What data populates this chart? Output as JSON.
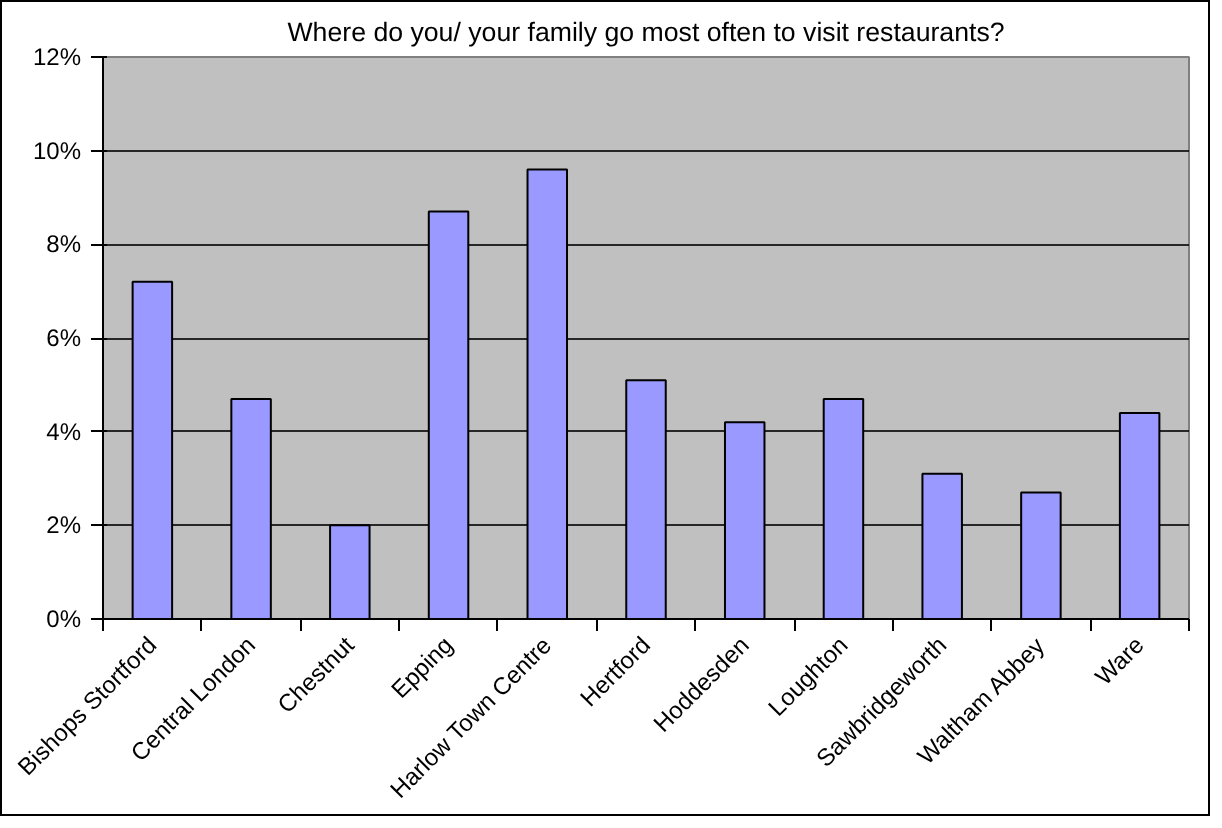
{
  "chart_data": {
    "type": "bar",
    "title": "Where do you/ your family go most often to visit restaurants?",
    "categories": [
      "Bishops Stortford",
      "Central London",
      "Chestnut",
      "Epping",
      "Harlow Town Centre",
      "Hertford",
      "Hoddesden",
      "Loughton",
      "Sawbridgeworth",
      "Waltham Abbey",
      "Ware"
    ],
    "values": [
      7.2,
      4.7,
      2.0,
      8.7,
      9.6,
      5.1,
      4.2,
      4.7,
      3.1,
      2.7,
      4.4
    ],
    "color": "#9999ff",
    "ylim": [
      0,
      12
    ],
    "yticks": [
      {
        "value": 0,
        "label": "0%"
      },
      {
        "value": 2,
        "label": "2%"
      },
      {
        "value": 4,
        "label": "4%"
      },
      {
        "value": 6,
        "label": "6%"
      },
      {
        "value": 8,
        "label": "8%"
      },
      {
        "value": 10,
        "label": "10%"
      },
      {
        "value": 12,
        "label": "12%"
      }
    ],
    "grid": "y"
  }
}
